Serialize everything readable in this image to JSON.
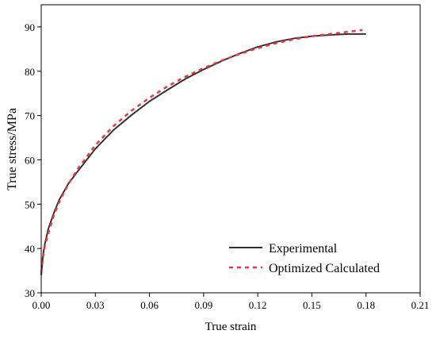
{
  "chart_data": {
    "type": "line",
    "title": "",
    "xlabel": "True strain",
    "ylabel": "True stress/MPa",
    "xlim": [
      0.0,
      0.21
    ],
    "ylim": [
      30,
      95
    ],
    "x_ticks": [
      "0.00",
      "0.03",
      "0.06",
      "0.09",
      "0.12",
      "0.15",
      "0.18",
      "0.21"
    ],
    "y_ticks": [
      "30",
      "40",
      "50",
      "60",
      "70",
      "80",
      "90"
    ],
    "grid": false,
    "legend_position": "bottom-right",
    "series": [
      {
        "name": "Experimental",
        "color": "#333333",
        "style": "solid",
        "x": [
          0.0,
          0.001,
          0.002,
          0.004,
          0.007,
          0.01,
          0.015,
          0.02,
          0.03,
          0.04,
          0.05,
          0.06,
          0.07,
          0.08,
          0.09,
          0.1,
          0.11,
          0.12,
          0.13,
          0.14,
          0.15,
          0.16,
          0.17,
          0.18
        ],
        "y": [
          34.0,
          38.5,
          41.0,
          44.5,
          48.0,
          51.0,
          54.6,
          57.3,
          62.5,
          66.7,
          70.1,
          73.2,
          75.8,
          78.3,
          80.4,
          82.3,
          84.0,
          85.5,
          86.6,
          87.4,
          87.9,
          88.2,
          88.4,
          88.4
        ]
      },
      {
        "name": "Optimized Calculated",
        "color": "#e8383d",
        "style": "dashed",
        "x": [
          0.0,
          0.001,
          0.002,
          0.004,
          0.007,
          0.01,
          0.015,
          0.02,
          0.03,
          0.04,
          0.05,
          0.06,
          0.07,
          0.08,
          0.09,
          0.1,
          0.11,
          0.12,
          0.13,
          0.14,
          0.15,
          0.16,
          0.17,
          0.178
        ],
        "y": [
          34.5,
          38.0,
          40.5,
          43.5,
          47.5,
          50.5,
          54.5,
          57.8,
          63.3,
          67.6,
          71.1,
          74.0,
          76.6,
          78.8,
          80.7,
          82.4,
          83.9,
          85.2,
          86.3,
          87.2,
          87.9,
          88.4,
          88.9,
          89.3
        ]
      }
    ]
  }
}
